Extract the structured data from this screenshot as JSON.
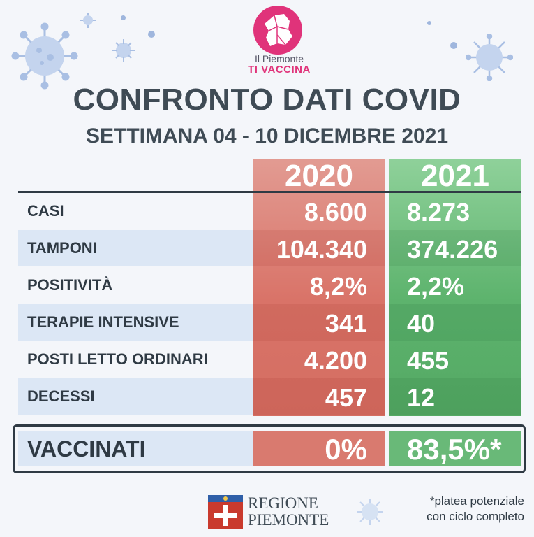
{
  "brand": {
    "line1": "Il Piemonte",
    "line2": "TI VACCINA"
  },
  "title": "CONFRONTO DATI COVID",
  "subtitle": "SETTIMANA 04 - 10 DICEMBRE 2021",
  "columns": [
    "2020",
    "2021"
  ],
  "rows": [
    {
      "label": "CASI",
      "y2020": "8.600",
      "y2021": "8.273"
    },
    {
      "label": "TAMPONI",
      "y2020": "104.340",
      "y2021": "374.226"
    },
    {
      "label": "POSITIVITÀ",
      "y2020": "8,2%",
      "y2021": "2,2%"
    },
    {
      "label": "TERAPIE INTENSIVE",
      "y2020": "341",
      "y2021": "40"
    },
    {
      "label": "POSTI LETTO ORDINARI",
      "y2020": "4.200",
      "y2021": "455"
    },
    {
      "label": "DECESSI",
      "y2020": "457",
      "y2021": "12"
    }
  ],
  "vaccinated": {
    "label": "VACCINATI",
    "y2020": "0%",
    "y2021": "83,5%*"
  },
  "footer": {
    "org_line1": "REGIONE",
    "org_line2": "PIEMONTE",
    "note_line1": "*platea potenziale",
    "note_line2": "con ciclo completo"
  },
  "colors": {
    "red": "#d97368",
    "green": "#5db36d",
    "brand": "#e0337a",
    "text": "#3f4b55"
  }
}
